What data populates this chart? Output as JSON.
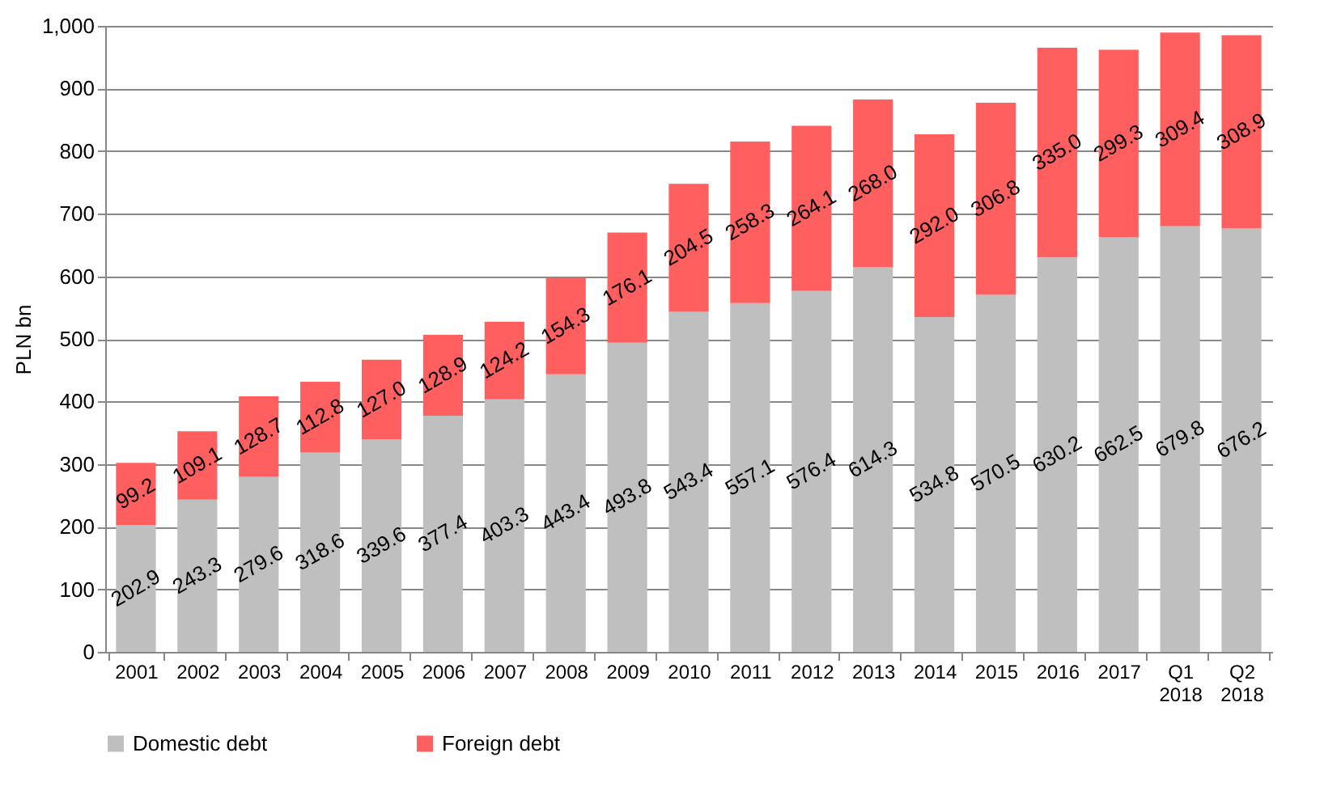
{
  "chart_data": {
    "type": "bar",
    "ylabel": "PLN bn",
    "stacked": true,
    "grid": "y",
    "legend": "bottom",
    "categories": [
      "2001",
      "2002",
      "2003",
      "2004",
      "2005",
      "2006",
      "2007",
      "2008",
      "2009",
      "2010",
      "2011",
      "2012",
      "2013",
      "2014",
      "2015",
      "2016",
      "2017",
      "Q1 2018",
      "Q2 2018"
    ],
    "ylim": [
      0,
      1000
    ],
    "yticks": [
      0,
      100,
      200,
      300,
      400,
      500,
      600,
      700,
      800,
      900,
      {
        "value": 1000,
        "label": "1,000"
      }
    ],
    "series": [
      {
        "name": "Domestic debt",
        "color": "#bfbfbf",
        "values": [
          202.9,
          243.3,
          279.6,
          318.6,
          339.6,
          377.4,
          403.3,
          443.4,
          493.8,
          543.4,
          557.1,
          576.4,
          614.3,
          534.8,
          570.5,
          630.2,
          662.5,
          679.8,
          676.2
        ],
        "value_labels": [
          "202.9",
          "243.3",
          "279.6",
          "318.6",
          "339.6",
          "377.4",
          "403.3",
          "443.4",
          "493.8",
          "543.4",
          "557.1",
          "576.4",
          "614.3",
          "534.8",
          "570.5",
          "630.2",
          "662.5",
          "679.8",
          "676.2"
        ]
      },
      {
        "name": "Foreign debt",
        "color": "#ff5f5f",
        "values": [
          99.2,
          109.1,
          128.7,
          112.8,
          127.0,
          128.9,
          124.2,
          154.3,
          176.1,
          204.5,
          258.3,
          264.1,
          268.0,
          292.0,
          306.8,
          335.0,
          299.3,
          309.4,
          308.9
        ],
        "value_labels": [
          "99.2",
          "109.1",
          "128.7",
          "112.8",
          "127.0",
          "128.9",
          "124.2",
          "154.3",
          "176.1",
          "204.5",
          "258.3",
          "264.1",
          "268.0",
          "292.0",
          "306.8",
          "335.0",
          "299.3",
          "309.4",
          "308.9"
        ]
      }
    ]
  }
}
